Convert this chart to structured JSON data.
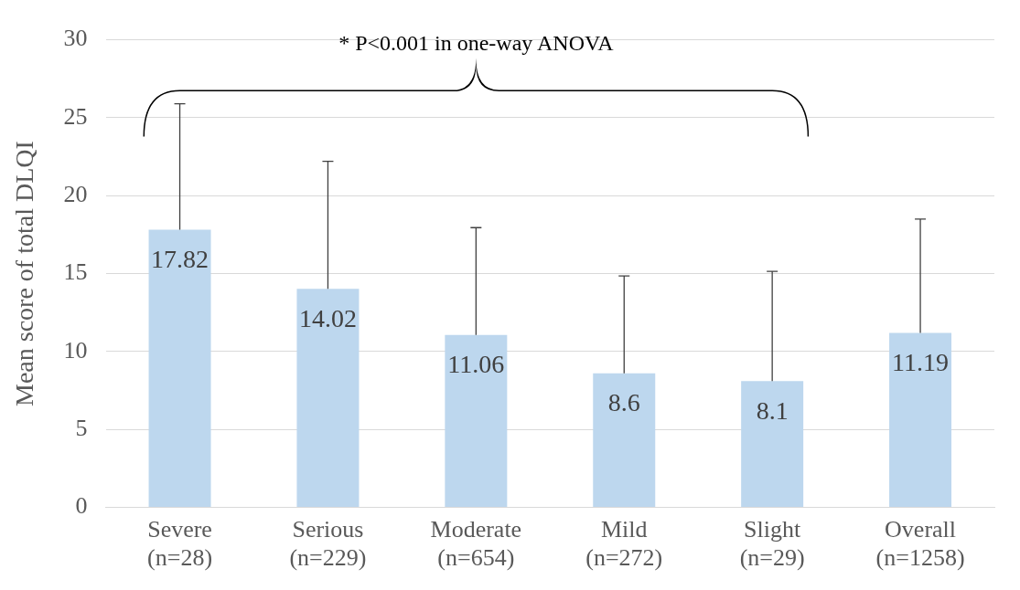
{
  "chart_data": {
    "type": "bar",
    "ylabel": "Mean score of total DLQI",
    "categories": [
      "Severe\n(n=28)",
      "Serious\n(n=229)",
      "Moderate\n(n=654)",
      "Mild\n(n=272)",
      "Slight\n(n=29)",
      "Overall\n(n=1258)"
    ],
    "values": [
      17.82,
      14.02,
      11.06,
      8.6,
      8.1,
      11.19
    ],
    "errors": [
      [
        17.82,
        25.9
      ],
      [
        14.02,
        22.2
      ],
      [
        11.06,
        17.95
      ],
      [
        8.6,
        14.85
      ],
      [
        8.1,
        15.15
      ],
      [
        11.19,
        18.5
      ]
    ],
    "color": "#bdd7ee",
    "data_labels": true,
    "grid": "y",
    "ylim": [
      0,
      30
    ],
    "yticks": [
      0,
      5,
      10,
      15,
      20,
      25,
      30
    ],
    "annotations": [
      "* P<0.001 in one-way ANOVA"
    ]
  }
}
